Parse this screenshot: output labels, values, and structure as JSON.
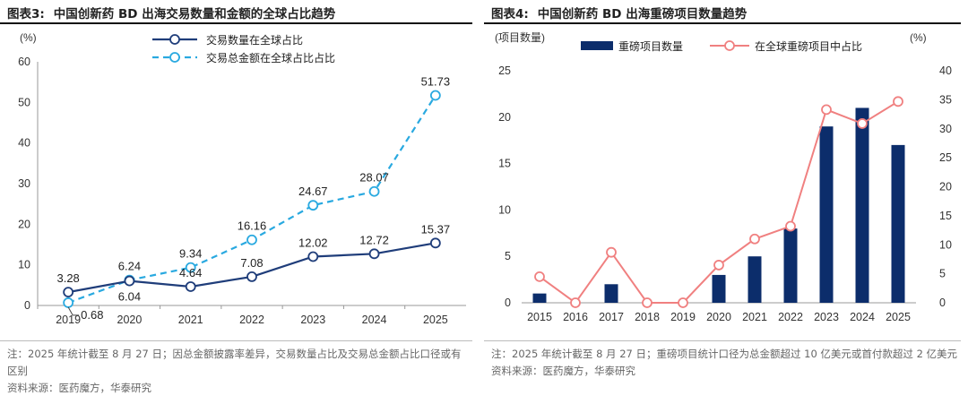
{
  "left": {
    "figure_label": "图表3:",
    "title": "中国创新药 BD 出海交易数量和金额的全球占比趋势",
    "note": "注：2025 年统计截至 8 月 27 日；因总金额披露率差异，交易数量占比及交易总金额占比口径或有区别",
    "source": "资料来源：医药魔方，华泰研究",
    "colors": {
      "count": "#1f3d7a",
      "amount": "#29a9e0"
    }
  },
  "right": {
    "figure_label": "图表4:",
    "title": "中国创新药 BD 出海重磅项目数量趋势",
    "note": "注：2025 年统计截至 8 月 27 日；重磅项目统计口径为总金额超过 10 亿美元或首付款超过 2 亿美元",
    "source": "资料来源：医药魔方，华泰研究",
    "colors": {
      "bars": "#0c2d6b",
      "line": "#f08080"
    }
  },
  "chart_data": [
    {
      "type": "line",
      "ylabel": "(%)",
      "ylim": [
        0,
        60
      ],
      "yticks": [
        0,
        10,
        20,
        30,
        40,
        50,
        60
      ],
      "categories": [
        "2019",
        "2020",
        "2021",
        "2022",
        "2023",
        "2024",
        "2025"
      ],
      "legend_position": "top",
      "series": [
        {
          "name": "交易数量在全球占比",
          "values": [
            3.28,
            6.04,
            4.64,
            7.08,
            12.02,
            12.72,
            15.37
          ],
          "labels": [
            "3.28",
            "6.04",
            "4.64",
            "7.08",
            "12.02",
            "12.72",
            "15.37"
          ],
          "style": "solid"
        },
        {
          "name": "交易总金额在全球占比占比",
          "values": [
            0.68,
            6.24,
            9.34,
            16.16,
            24.67,
            28.07,
            51.73
          ],
          "labels": [
            "0.68",
            "6.24",
            "9.34",
            "16.16",
            "24.67",
            "28.07",
            "51.73"
          ],
          "style": "dashed"
        }
      ]
    },
    {
      "type": "bar",
      "ylabel": "(项目数量)",
      "y2label": "(%)",
      "ylim": [
        0,
        25
      ],
      "y2lim": [
        0,
        40
      ],
      "yticks": [
        0,
        5,
        10,
        15,
        20,
        25
      ],
      "y2ticks": [
        0,
        5,
        10,
        15,
        20,
        25,
        30,
        35,
        40
      ],
      "categories": [
        "2015",
        "2016",
        "2017",
        "2018",
        "2019",
        "2020",
        "2021",
        "2022",
        "2023",
        "2024",
        "2025"
      ],
      "legend_position": "top",
      "series": [
        {
          "name": "重磅项目数量",
          "type": "bar",
          "axis": "left",
          "values": [
            1,
            0,
            2,
            0,
            0,
            3,
            5,
            8,
            19,
            21,
            17
          ]
        },
        {
          "name": "在全球重磅项目中占比",
          "type": "line",
          "axis": "right",
          "values": [
            4.5,
            0,
            8.7,
            0,
            0,
            6.5,
            11,
            13.2,
            33.3,
            30.9,
            34.7
          ]
        }
      ]
    }
  ]
}
